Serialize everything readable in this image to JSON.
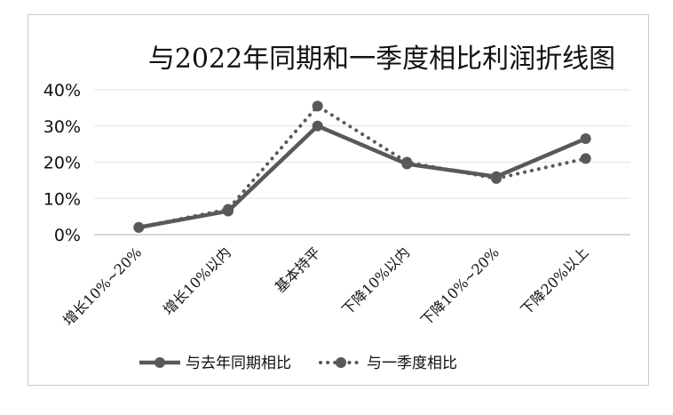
{
  "chart_data": {
    "type": "line",
    "title": "与2022年同期和一季度相比利润折线图",
    "xlabel": "",
    "ylabel": "",
    "categories": [
      "增长10%~20%",
      "增长10%以内",
      "基本持平",
      "下降10%以内",
      "下降10%~20%",
      "下降20%以上"
    ],
    "y_ticks": [
      "0%",
      "10%",
      "20%",
      "30%",
      "40%"
    ],
    "ylim": [
      0,
      40
    ],
    "grid": true,
    "legend_position": "bottom",
    "series": [
      {
        "name": "与去年同期相比",
        "values": [
          2,
          6.5,
          30,
          19.5,
          16,
          26.5
        ],
        "style": "solid",
        "color": "#595959"
      },
      {
        "name": "与一季度相比",
        "values": [
          2,
          7,
          35.5,
          20,
          15.5,
          21
        ],
        "style": "dotted",
        "color": "#595959"
      }
    ]
  }
}
